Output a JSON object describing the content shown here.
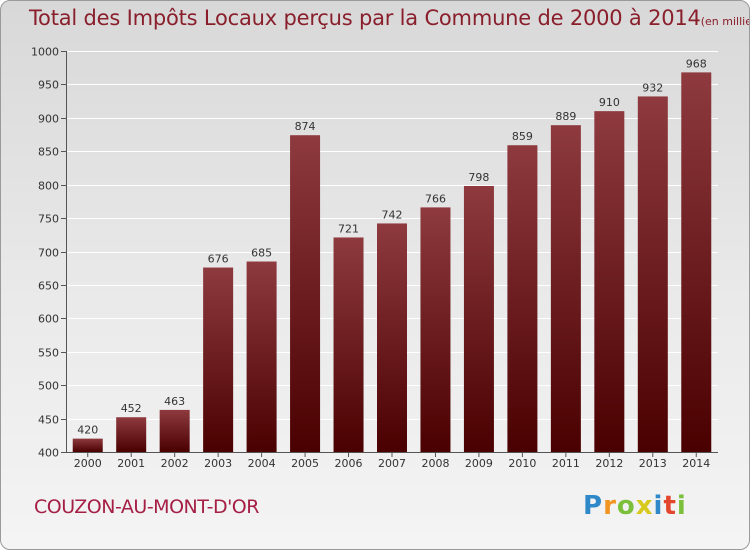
{
  "chart_data": {
    "type": "bar",
    "title": "Total des Impôts Locaux perçus par la Commune de 2000 à 2014",
    "subtitle": "(en milliers d'€)",
    "categories": [
      "2000",
      "2001",
      "2002",
      "2003",
      "2004",
      "2005",
      "2006",
      "2007",
      "2008",
      "2009",
      "2010",
      "2011",
      "2012",
      "2013",
      "2014"
    ],
    "values": [
      420,
      452,
      463,
      676,
      685,
      874,
      721,
      742,
      766,
      798,
      859,
      889,
      910,
      932,
      968
    ],
    "ylim": [
      400,
      1000
    ],
    "yticks": [
      400,
      450,
      500,
      550,
      600,
      650,
      700,
      750,
      800,
      850,
      900,
      950,
      1000
    ],
    "xlabel": "",
    "ylabel": "",
    "grid": true,
    "bar_color_top": "#8e3a3f",
    "bar_color_bottom": "#4a0000"
  },
  "commune": "COUZON-AU-MONT-D'OR",
  "logo": {
    "letters": [
      "P",
      "r",
      "o",
      "x",
      "i",
      "t",
      "i"
    ],
    "colors": [
      "#2f88c8",
      "#f29422",
      "#7bbf3b",
      "#d8c91e",
      "#2f88c8",
      "#e2462c",
      "#7bbf3b"
    ]
  }
}
